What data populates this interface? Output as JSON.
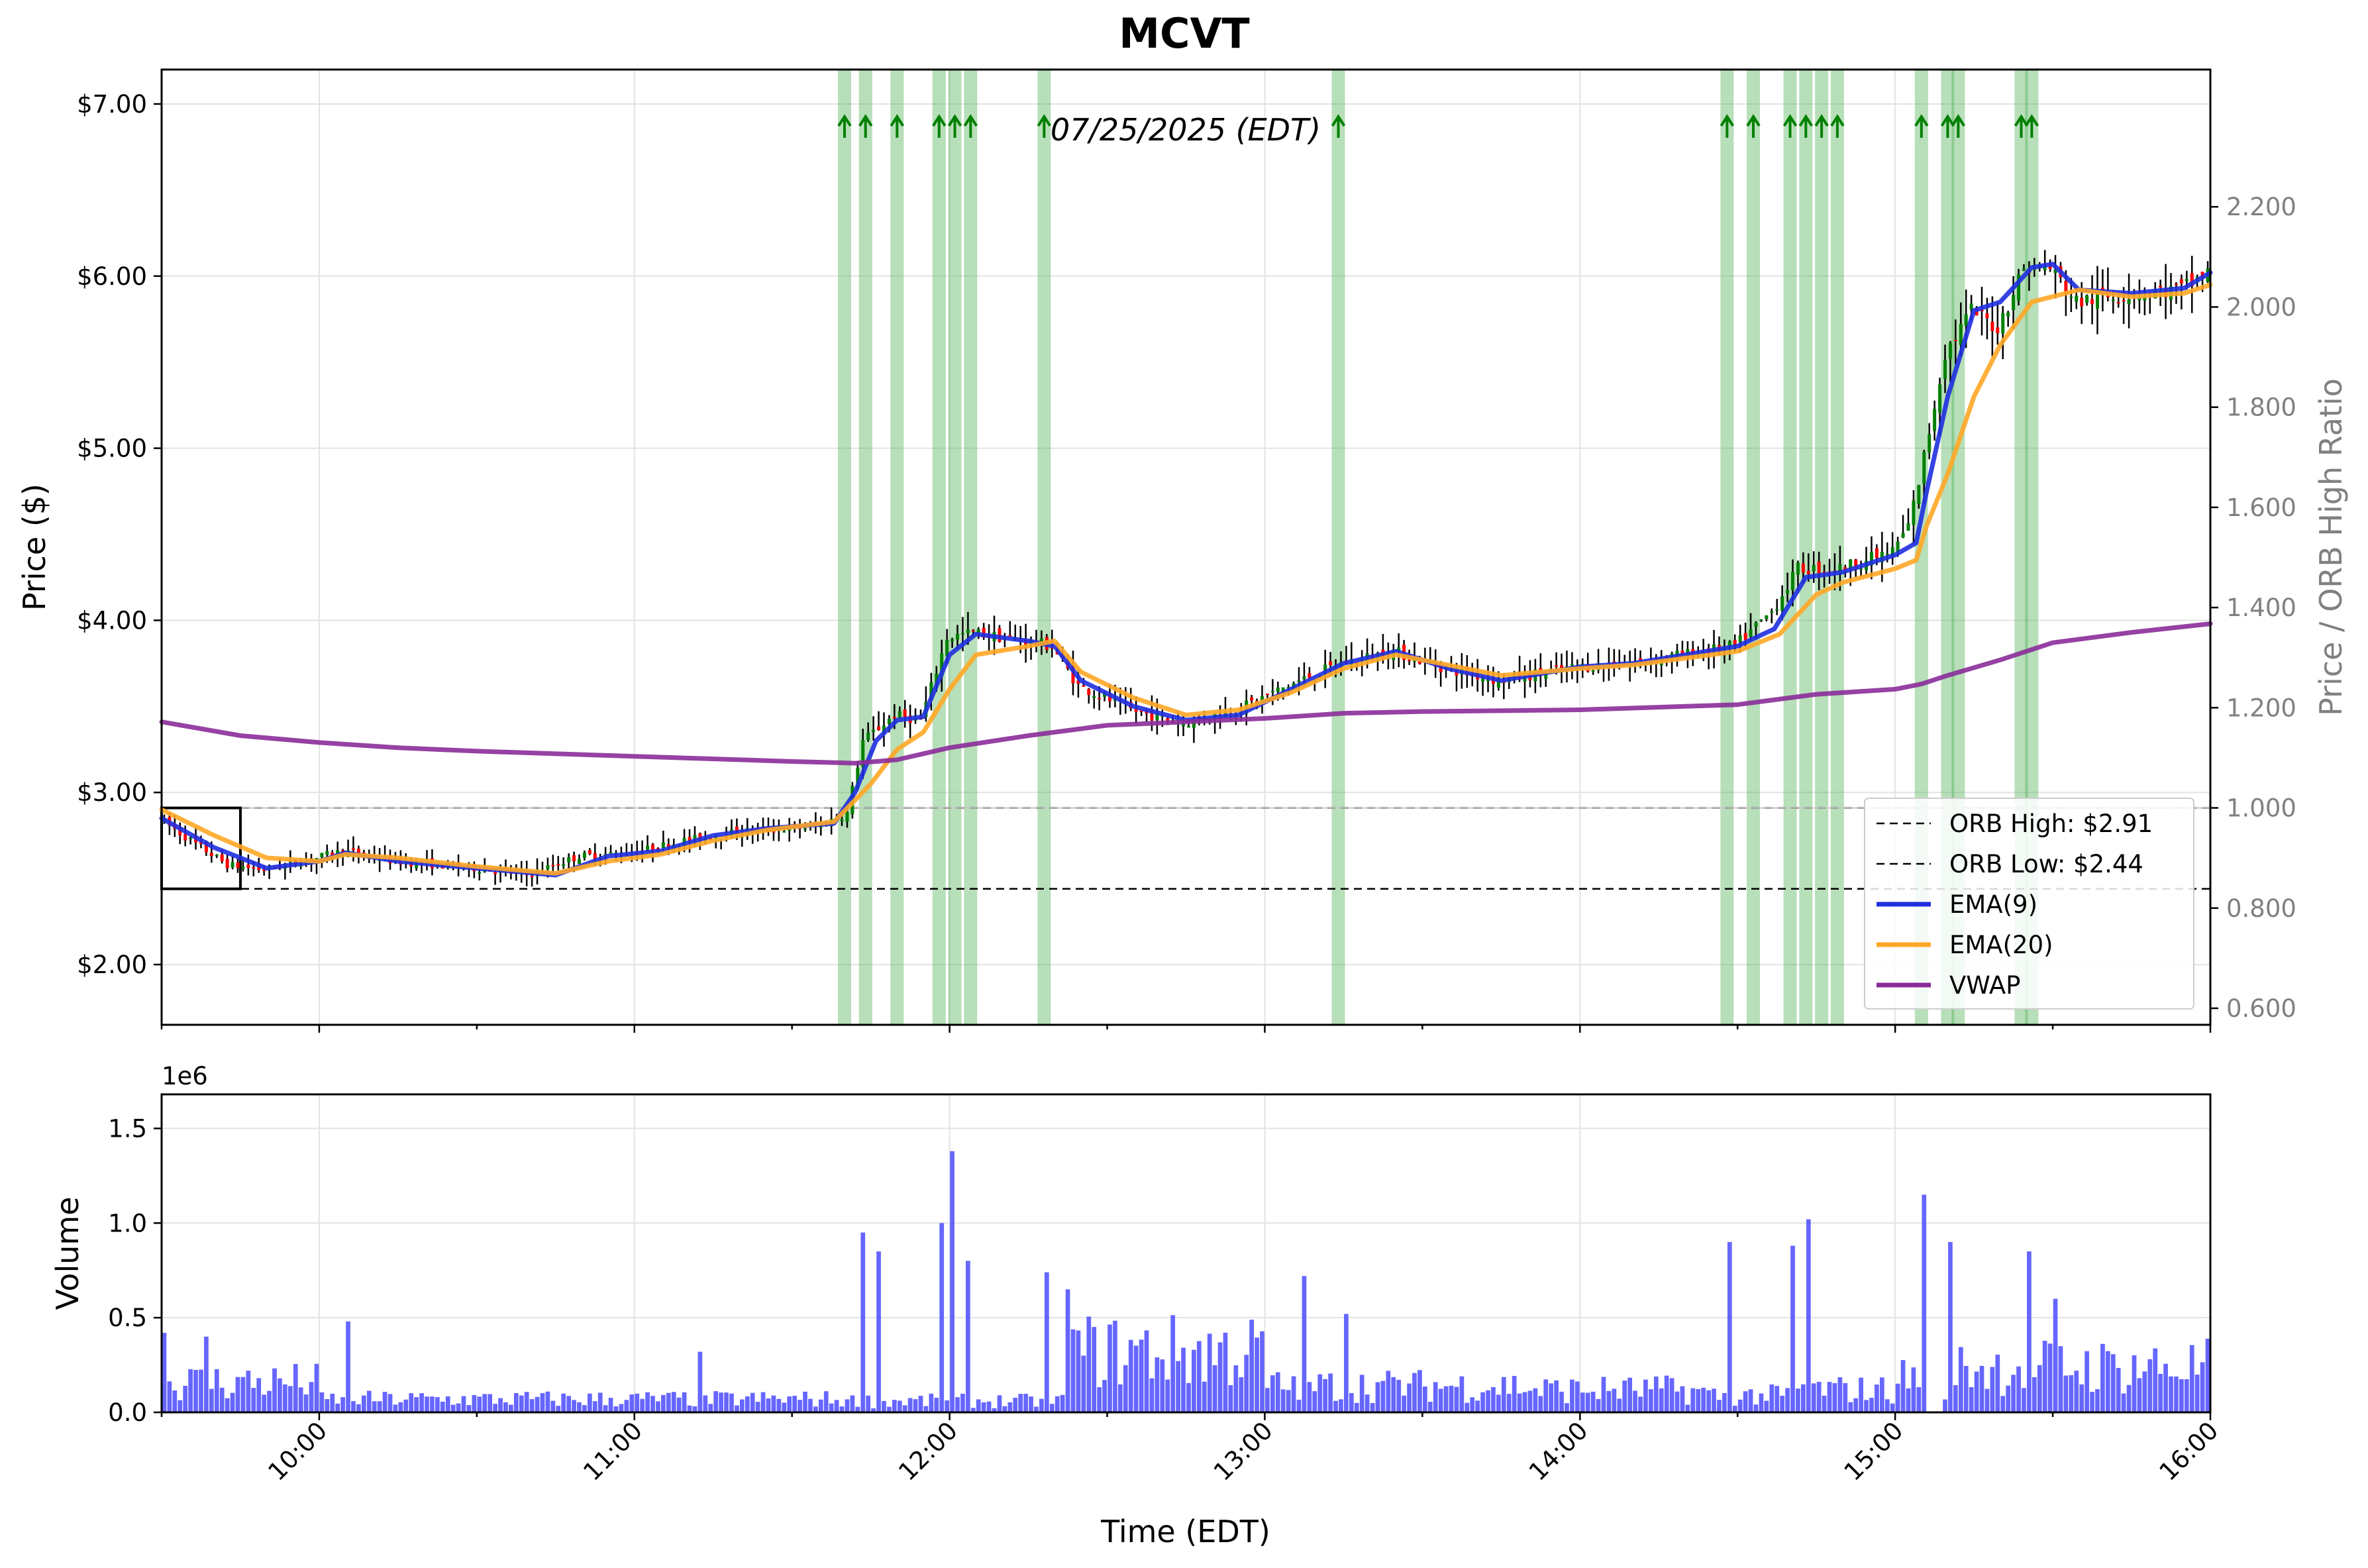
{
  "chart_data": {
    "type": "candlestick",
    "title": "MCVT",
    "annotation": "07/25/2025 (EDT)",
    "xlabel": "Time (EDT)",
    "x_ticks": [
      "10:00",
      "11:00",
      "12:00",
      "13:00",
      "14:00",
      "15:00",
      "16:00"
    ],
    "price_panel": {
      "ylabel": "Price ($)",
      "ylim": [
        1.65,
        7.2
      ],
      "y_ticks": [
        "$2.00",
        "$3.00",
        "$4.00",
        "$5.00",
        "$6.00",
        "$7.00"
      ],
      "secondary_ylabel": "Price / ORB High Ratio",
      "secondary_ylim": [
        0.567,
        2.474
      ],
      "secondary_ticks": [
        "0.600",
        "0.800",
        "1.000",
        "1.200",
        "1.400",
        "1.600",
        "1.800",
        "2.000",
        "2.200"
      ],
      "orb_high": 2.91,
      "orb_low": 2.44,
      "orb_box": {
        "start": "09:30",
        "end": "09:45",
        "low": 2.44,
        "high": 2.91
      },
      "signal_times": [
        "11:40",
        "11:44",
        "11:50",
        "11:58",
        "12:01",
        "12:04",
        "12:18",
        "13:14",
        "14:28",
        "14:33",
        "14:40",
        "14:43",
        "14:46",
        "14:49",
        "15:05",
        "15:10",
        "15:12",
        "15:24",
        "15:26"
      ],
      "price_path": [
        [
          "09:30",
          2.85
        ],
        [
          "09:37",
          2.7
        ],
        [
          "09:43",
          2.58
        ],
        [
          "09:50",
          2.55
        ],
        [
          "10:00",
          2.62
        ],
        [
          "10:05",
          2.66
        ],
        [
          "10:15",
          2.6
        ],
        [
          "10:30",
          2.56
        ],
        [
          "10:40",
          2.52
        ],
        [
          "10:50",
          2.63
        ],
        [
          "11:00",
          2.65
        ],
        [
          "11:10",
          2.72
        ],
        [
          "11:20",
          2.77
        ],
        [
          "11:35",
          2.8
        ],
        [
          "11:41",
          2.88
        ],
        [
          "11:44",
          3.3
        ],
        [
          "11:50",
          3.45
        ],
        [
          "11:55",
          3.42
        ],
        [
          "12:00",
          3.9
        ],
        [
          "12:05",
          3.93
        ],
        [
          "12:15",
          3.88
        ],
        [
          "12:20",
          3.85
        ],
        [
          "12:25",
          3.62
        ],
        [
          "12:35",
          3.48
        ],
        [
          "12:45",
          3.4
        ],
        [
          "12:55",
          3.48
        ],
        [
          "13:05",
          3.62
        ],
        [
          "13:15",
          3.75
        ],
        [
          "13:25",
          3.82
        ],
        [
          "13:35",
          3.72
        ],
        [
          "13:45",
          3.65
        ],
        [
          "14:00",
          3.73
        ],
        [
          "14:10",
          3.75
        ],
        [
          "14:20",
          3.8
        ],
        [
          "14:30",
          3.85
        ],
        [
          "14:37",
          4.05
        ],
        [
          "14:42",
          4.3
        ],
        [
          "14:50",
          4.3
        ],
        [
          "15:00",
          4.4
        ],
        [
          "15:03",
          4.55
        ],
        [
          "15:05",
          4.8
        ],
        [
          "15:10",
          5.55
        ],
        [
          "15:15",
          5.8
        ],
        [
          "15:20",
          5.7
        ],
        [
          "15:25",
          6.05
        ],
        [
          "15:30",
          6.05
        ],
        [
          "15:35",
          5.85
        ],
        [
          "15:45",
          5.9
        ],
        [
          "15:55",
          5.92
        ],
        [
          "16:00",
          6.02
        ]
      ],
      "series": [
        {
          "name": "ORB High: $2.91",
          "style": "dashed",
          "color": "#000000",
          "values": [
            [
              "09:30",
              2.91
            ],
            [
              "16:00",
              2.91
            ]
          ]
        },
        {
          "name": "ORB Low: $2.44",
          "style": "dashed",
          "color": "#000000",
          "values": [
            [
              "09:30",
              2.44
            ],
            [
              "16:00",
              2.44
            ]
          ]
        },
        {
          "name": "EMA(9)",
          "color": "#1f2fe0",
          "values": [
            [
              "09:30",
              2.85
            ],
            [
              "09:40",
              2.68
            ],
            [
              "09:50",
              2.56
            ],
            [
              "10:00",
              2.6
            ],
            [
              "10:05",
              2.65
            ],
            [
              "10:15",
              2.6
            ],
            [
              "10:30",
              2.56
            ],
            [
              "10:45",
              2.52
            ],
            [
              "10:55",
              2.63
            ],
            [
              "11:05",
              2.66
            ],
            [
              "11:15",
              2.75
            ],
            [
              "11:25",
              2.79
            ],
            [
              "11:38",
              2.82
            ],
            [
              "11:42",
              3.0
            ],
            [
              "11:46",
              3.3
            ],
            [
              "11:50",
              3.42
            ],
            [
              "11:55",
              3.44
            ],
            [
              "12:00",
              3.8
            ],
            [
              "12:05",
              3.92
            ],
            [
              "12:15",
              3.88
            ],
            [
              "12:20",
              3.85
            ],
            [
              "12:25",
              3.65
            ],
            [
              "12:35",
              3.5
            ],
            [
              "12:45",
              3.42
            ],
            [
              "12:55",
              3.45
            ],
            [
              "13:05",
              3.6
            ],
            [
              "13:15",
              3.75
            ],
            [
              "13:25",
              3.82
            ],
            [
              "13:35",
              3.72
            ],
            [
              "13:45",
              3.65
            ],
            [
              "14:00",
              3.73
            ],
            [
              "14:10",
              3.75
            ],
            [
              "14:20",
              3.8
            ],
            [
              "14:30",
              3.85
            ],
            [
              "14:37",
              3.95
            ],
            [
              "14:43",
              4.25
            ],
            [
              "14:50",
              4.28
            ],
            [
              "15:00",
              4.38
            ],
            [
              "15:04",
              4.45
            ],
            [
              "15:06",
              4.75
            ],
            [
              "15:10",
              5.3
            ],
            [
              "15:15",
              5.8
            ],
            [
              "15:20",
              5.85
            ],
            [
              "15:26",
              6.05
            ],
            [
              "15:30",
              6.07
            ],
            [
              "15:35",
              5.92
            ],
            [
              "15:45",
              5.9
            ],
            [
              "15:55",
              5.93
            ],
            [
              "16:00",
              6.02
            ]
          ]
        },
        {
          "name": "EMA(20)",
          "color": "#ffa726",
          "values": [
            [
              "09:30",
              2.9
            ],
            [
              "09:40",
              2.75
            ],
            [
              "09:50",
              2.62
            ],
            [
              "10:00",
              2.6
            ],
            [
              "10:05",
              2.64
            ],
            [
              "10:15",
              2.62
            ],
            [
              "10:30",
              2.57
            ],
            [
              "10:45",
              2.53
            ],
            [
              "10:55",
              2.6
            ],
            [
              "11:05",
              2.64
            ],
            [
              "11:15",
              2.72
            ],
            [
              "11:25",
              2.78
            ],
            [
              "11:38",
              2.83
            ],
            [
              "11:45",
              3.05
            ],
            [
              "11:50",
              3.25
            ],
            [
              "11:55",
              3.35
            ],
            [
              "12:00",
              3.6
            ],
            [
              "12:05",
              3.8
            ],
            [
              "12:15",
              3.85
            ],
            [
              "12:20",
              3.88
            ],
            [
              "12:25",
              3.7
            ],
            [
              "12:35",
              3.55
            ],
            [
              "12:45",
              3.45
            ],
            [
              "12:55",
              3.48
            ],
            [
              "13:05",
              3.58
            ],
            [
              "13:15",
              3.72
            ],
            [
              "13:25",
              3.8
            ],
            [
              "13:35",
              3.74
            ],
            [
              "13:45",
              3.68
            ],
            [
              "14:00",
              3.72
            ],
            [
              "14:10",
              3.74
            ],
            [
              "14:20",
              3.78
            ],
            [
              "14:30",
              3.82
            ],
            [
              "14:38",
              3.92
            ],
            [
              "14:45",
              4.15
            ],
            [
              "14:50",
              4.22
            ],
            [
              "15:00",
              4.3
            ],
            [
              "15:04",
              4.35
            ],
            [
              "15:06",
              4.55
            ],
            [
              "15:10",
              4.85
            ],
            [
              "15:15",
              5.3
            ],
            [
              "15:20",
              5.6
            ],
            [
              "15:26",
              5.85
            ],
            [
              "15:35",
              5.92
            ],
            [
              "15:45",
              5.88
            ],
            [
              "15:55",
              5.9
            ],
            [
              "16:00",
              5.95
            ]
          ]
        },
        {
          "name": "VWAP",
          "color": "#8b2c9a",
          "values": [
            [
              "09:30",
              3.41
            ],
            [
              "09:45",
              3.33
            ],
            [
              "10:00",
              3.29
            ],
            [
              "10:15",
              3.26
            ],
            [
              "10:30",
              3.24
            ],
            [
              "11:00",
              3.21
            ],
            [
              "11:30",
              3.18
            ],
            [
              "11:42",
              3.17
            ],
            [
              "11:50",
              3.19
            ],
            [
              "12:00",
              3.26
            ],
            [
              "12:15",
              3.33
            ],
            [
              "12:30",
              3.39
            ],
            [
              "12:45",
              3.41
            ],
            [
              "13:00",
              3.43
            ],
            [
              "13:15",
              3.46
            ],
            [
              "13:30",
              3.47
            ],
            [
              "14:00",
              3.48
            ],
            [
              "14:30",
              3.51
            ],
            [
              "14:45",
              3.57
            ],
            [
              "15:00",
              3.6
            ],
            [
              "15:05",
              3.63
            ],
            [
              "15:10",
              3.68
            ],
            [
              "15:20",
              3.77
            ],
            [
              "15:30",
              3.87
            ],
            [
              "15:45",
              3.93
            ],
            [
              "16:00",
              3.98
            ]
          ]
        }
      ],
      "legend": "lower-right"
    },
    "volume_panel": {
      "ylabel": "Volume",
      "y_multiplier": "1e6",
      "ylim": [
        0,
        1.68
      ],
      "y_ticks": [
        "0.0",
        "0.5",
        "1.0",
        "1.5"
      ],
      "type": "bar",
      "color": "#4b4bff",
      "peaks": [
        [
          "09:30",
          0.42
        ],
        [
          "09:38",
          0.4
        ],
        [
          "10:05",
          0.48
        ],
        [
          "11:12",
          0.32
        ],
        [
          "11:43",
          0.95
        ],
        [
          "11:46",
          0.85
        ],
        [
          "11:58",
          1.0
        ],
        [
          "12:00",
          1.38
        ],
        [
          "12:03",
          0.8
        ],
        [
          "12:18",
          0.74
        ],
        [
          "12:22",
          0.65
        ],
        [
          "13:07",
          0.72
        ],
        [
          "13:15",
          0.52
        ],
        [
          "14:28",
          0.9
        ],
        [
          "14:40",
          0.88
        ],
        [
          "14:43",
          1.02
        ],
        [
          "15:05",
          1.15
        ],
        [
          "15:10",
          0.9
        ],
        [
          "15:25",
          0.85
        ],
        [
          "15:30",
          0.6
        ]
      ]
    }
  }
}
